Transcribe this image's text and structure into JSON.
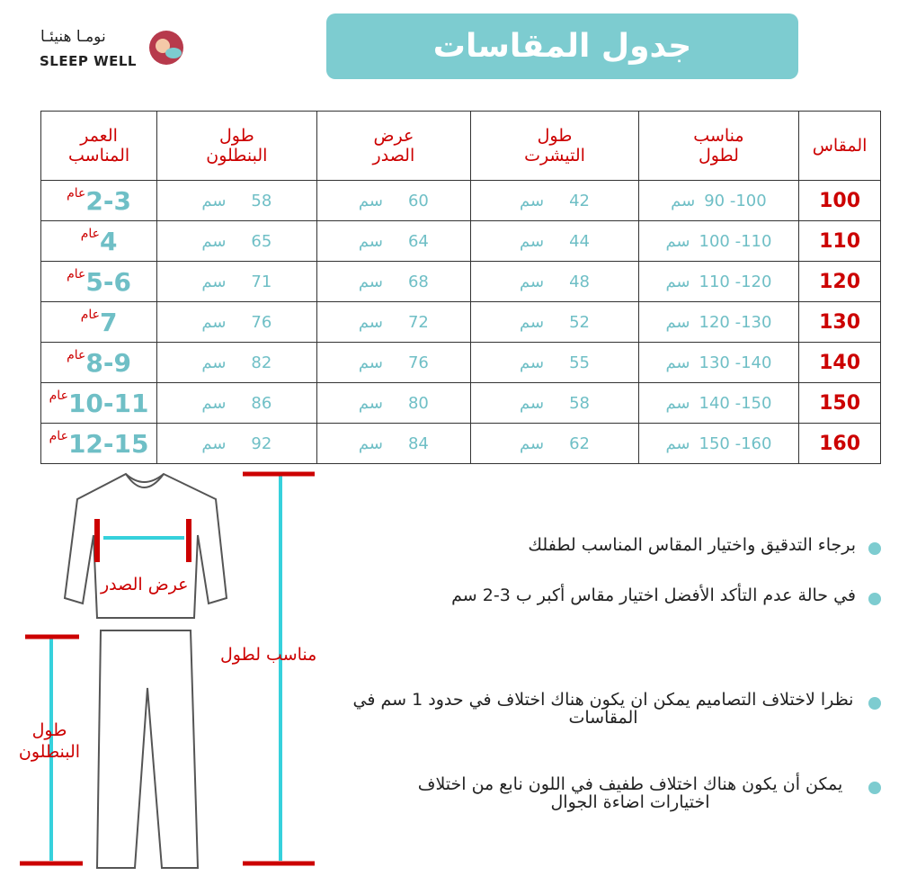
{
  "logo": {
    "arabic": "نومـا هنيئـا",
    "english": "SLEEP WELL"
  },
  "title": "جدول المقاسات",
  "table": {
    "headers": [
      "المقاس",
      "مناسب لطول",
      "طول التيشرت",
      "عرض الصدر",
      "طول البنطلون",
      "العمر المناسب"
    ],
    "unit": "سم",
    "age_unit": "عام",
    "rows": [
      {
        "size": "100",
        "height": "90 -100",
        "shirt": "42",
        "chest": "60",
        "pants": "58",
        "age": "2-3"
      },
      {
        "size": "110",
        "height": "100 -110",
        "shirt": "44",
        "chest": "64",
        "pants": "65",
        "age": "4"
      },
      {
        "size": "120",
        "height": "110 -120",
        "shirt": "48",
        "chest": "68",
        "pants": "71",
        "age": "5-6"
      },
      {
        "size": "130",
        "height": "120 -130",
        "shirt": "52",
        "chest": "72",
        "pants": "76",
        "age": "7"
      },
      {
        "size": "140",
        "height": "130 -140",
        "shirt": "55",
        "chest": "76",
        "pants": "82",
        "age": "8-9"
      },
      {
        "size": "150",
        "height": "140 -150",
        "shirt": "58",
        "chest": "80",
        "pants": "86",
        "age": "10-11"
      },
      {
        "size": "160",
        "height": "150 -160",
        "shirt": "62",
        "chest": "84",
        "pants": "92",
        "age": "12-15"
      }
    ]
  },
  "diagram": {
    "chest_label": "عرض الصدر",
    "height_label": "مناسب لطول",
    "pants_label": "طول البنطلون"
  },
  "notes": [
    "برجاء التدقيق واختيار المقاس المناسب لطفلك",
    "في حالة عدم التأكد الأفضل اختيار مقاس أكبر ب 3-2 سم",
    "نظرا لاختلاف التصاميم يمكن ان يكون هناك اختلاف في حدود 1 سم في المقاسات",
    "يمكن أن يكون هناك اختلاف طفيف في اللون نابع من اختلاف اختيارات اضاءة الجوال"
  ],
  "colors": {
    "accent": "#7dccd0",
    "red": "#cc0000"
  }
}
